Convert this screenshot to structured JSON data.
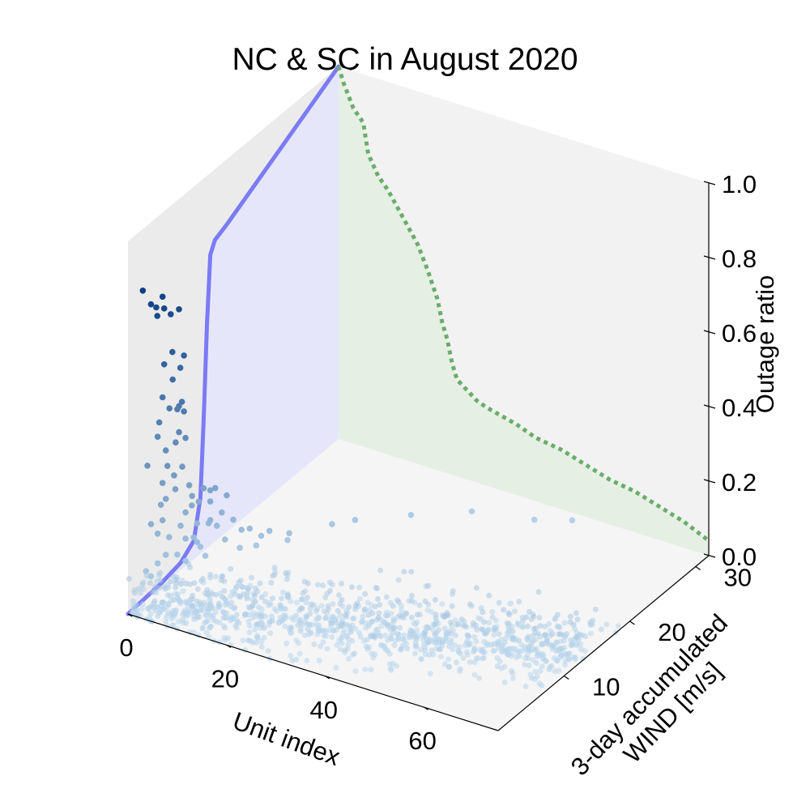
{
  "chart_data": {
    "type": "scatter",
    "projection": "3d",
    "title": "NC & SC in August 2020",
    "xlabel": "Unit index",
    "ylabel": "3-day accumulated\nWIND [m/s]",
    "zlabel": "Outage ratio",
    "xlim": [
      0,
      75
    ],
    "ylim": [
      0,
      32
    ],
    "zlim": [
      0,
      1.0
    ],
    "xticks": [
      0,
      20,
      40,
      60
    ],
    "yticks": [
      10,
      20,
      30
    ],
    "zticks": [
      0.0,
      0.2,
      0.4,
      0.6,
      0.8,
      1.0
    ],
    "ztick_labels": [
      "0.0",
      "0.2",
      "0.4",
      "0.6",
      "0.8",
      "1.0"
    ],
    "grid": false,
    "colors": {
      "panes": [
        "#ebebeb",
        "#f2f2f2",
        "#f5f5f5"
      ],
      "projection_curve": "#7b7bf5",
      "projection_fill": "#e6e6fb",
      "profile_line": "#6aad6a",
      "profile_fill": "#e6efe4",
      "points_low": "#b9d6ec",
      "points_high": "#0b3f84"
    },
    "series": [
      {
        "kind": "curve_on_wind_outage_plane",
        "x_plane": 0,
        "points": [
          [
            0,
            0.0
          ],
          [
            5,
            0.008
          ],
          [
            8,
            0.02
          ],
          [
            10,
            0.05
          ],
          [
            11,
            0.15
          ],
          [
            11.5,
            0.35
          ],
          [
            12,
            0.6
          ],
          [
            12.5,
            0.78
          ],
          [
            13.2,
            0.81
          ],
          [
            15,
            0.825
          ],
          [
            32,
            1.0
          ]
        ]
      },
      {
        "kind": "profile_on_unit_outage_plane",
        "y_plane": 32,
        "points": [
          [
            0,
            1.0
          ],
          [
            1,
            0.96
          ],
          [
            2,
            0.93
          ],
          [
            3,
            0.9
          ],
          [
            5,
            0.87
          ],
          [
            6,
            0.79
          ],
          [
            8,
            0.74
          ],
          [
            10,
            0.71
          ],
          [
            12,
            0.67
          ],
          [
            14,
            0.63
          ],
          [
            16,
            0.59
          ],
          [
            18,
            0.53
          ],
          [
            20,
            0.46
          ],
          [
            21,
            0.4
          ],
          [
            22,
            0.36
          ],
          [
            23,
            0.3
          ],
          [
            24,
            0.26
          ],
          [
            26,
            0.24
          ],
          [
            28,
            0.22
          ],
          [
            30,
            0.21
          ],
          [
            33,
            0.2
          ],
          [
            36,
            0.19
          ],
          [
            40,
            0.17
          ],
          [
            45,
            0.16
          ],
          [
            50,
            0.14
          ],
          [
            55,
            0.12
          ],
          [
            60,
            0.11
          ],
          [
            65,
            0.09
          ],
          [
            70,
            0.07
          ],
          [
            75,
            0.04
          ]
        ]
      },
      {
        "kind": "scatter_notable",
        "points": [
          [
            1,
            1.5,
            0.85
          ],
          [
            2,
            2.0,
            0.81
          ],
          [
            3,
            3.0,
            0.82
          ],
          [
            3,
            2.2,
            0.78
          ],
          [
            2,
            2.8,
            0.79
          ],
          [
            4,
            3.5,
            0.77
          ],
          [
            5,
            4.0,
            0.78
          ],
          [
            4,
            2.5,
            0.8
          ],
          [
            4,
            2.5,
            0.65
          ],
          [
            5,
            3.0,
            0.68
          ],
          [
            6,
            4.0,
            0.66
          ],
          [
            5,
            4.2,
            0.62
          ],
          [
            4,
            3.8,
            0.59
          ],
          [
            3,
            3.0,
            0.55
          ],
          [
            4,
            3.3,
            0.52
          ],
          [
            5,
            4.0,
            0.52
          ],
          [
            4,
            4.5,
            0.5
          ],
          [
            6,
            3.7,
            0.54
          ],
          [
            6,
            4.0,
            0.51
          ],
          [
            3,
            2.5,
            0.49
          ],
          [
            2,
            3.0,
            0.44
          ],
          [
            5,
            4.0,
            0.45
          ],
          [
            5,
            3.5,
            0.43
          ],
          [
            5,
            5.0,
            0.42
          ],
          [
            3,
            3.5,
            0.4
          ],
          [
            1,
            2.2,
            0.37
          ],
          [
            4,
            3.0,
            0.37
          ],
          [
            5,
            4.5,
            0.35
          ],
          [
            4,
            4.0,
            0.33
          ],
          [
            3,
            3.0,
            0.32
          ],
          [
            6,
            4.8,
            0.3
          ],
          [
            4,
            4.2,
            0.29
          ],
          [
            3,
            3.5,
            0.27
          ],
          [
            7,
            4.5,
            0.28
          ],
          [
            8,
            5.5,
            0.29
          ],
          [
            9,
            6.5,
            0.28
          ],
          [
            8,
            6.5,
            0.27
          ],
          [
            7,
            5.5,
            0.25
          ],
          [
            6,
            5.2,
            0.24
          ],
          [
            8,
            6.5,
            0.24
          ],
          [
            10,
            7.5,
            0.25
          ],
          [
            2,
            3.5,
            0.25
          ],
          [
            2,
            2.0,
            0.22
          ],
          [
            3,
            3.0,
            0.22
          ],
          [
            5,
            5.0,
            0.22
          ],
          [
            2,
            3.0,
            0.18
          ],
          [
            4,
            5.0,
            0.18
          ],
          [
            6,
            6.0,
            0.18
          ],
          [
            7,
            7.0,
            0.17
          ],
          [
            8,
            6.5,
            0.19
          ],
          [
            9,
            7.5,
            0.2
          ],
          [
            3,
            4.0,
            0.16
          ],
          [
            5,
            5.0,
            0.15
          ],
          [
            6,
            5.5,
            0.15
          ],
          [
            8,
            7.5,
            0.16
          ],
          [
            10,
            8.5,
            0.17
          ],
          [
            12,
            9.5,
            0.14
          ],
          [
            11,
            9.0,
            0.14
          ],
          [
            14,
            11.0,
            0.12
          ],
          [
            6,
            6.0,
            0.13
          ],
          [
            3,
            3.5,
            0.12
          ],
          [
            2,
            3.0,
            0.1
          ],
          [
            4,
            4.5,
            0.11
          ],
          [
            6,
            6.5,
            0.11
          ],
          [
            9,
            8.0,
            0.12
          ],
          [
            13,
            10.5,
            0.11
          ],
          [
            16,
            12.5,
            0.1
          ],
          [
            20,
            16.0,
            0.09
          ],
          [
            1,
            2.0,
            0.09
          ],
          [
            2,
            2.0,
            0.08
          ],
          [
            5,
            5.0,
            0.09
          ],
          [
            7,
            6.5,
            0.09
          ],
          [
            10,
            9.5,
            0.08
          ],
          [
            12,
            10.5,
            0.08
          ],
          [
            15,
            13.0,
            0.07
          ],
          [
            22,
            18.0,
            0.08
          ],
          [
            28,
            22.0,
            0.06
          ],
          [
            35,
            26.0,
            0.04
          ],
          [
            45,
            28.0,
            0.03
          ],
          [
            50,
            30.0,
            0.02
          ]
        ]
      },
      {
        "kind": "scatter_bulk",
        "z_range": [
          0.0,
          0.1
        ],
        "unit_range": [
          0,
          75
        ],
        "wind_range": [
          0,
          30
        ],
        "note": "dense cloud of low-outage points, wind rising with unit index"
      }
    ]
  }
}
